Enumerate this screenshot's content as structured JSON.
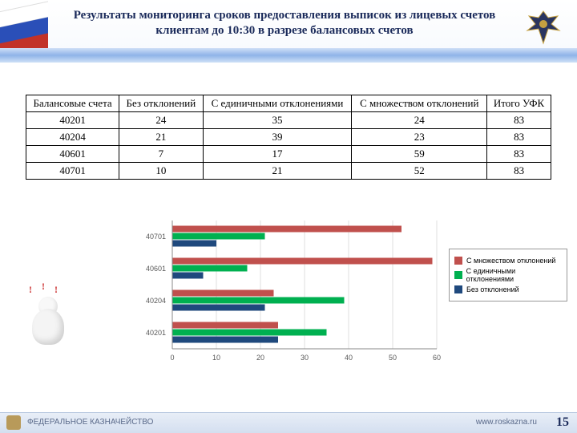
{
  "title": "Результаты мониторинга сроков предоставления выписок из лицевых счетов клиентам до 10:30 в разрезе балансовых счетов",
  "table": {
    "columns": [
      "Балансовые счета",
      "Без отклонений",
      "С единичными отклонениями",
      "С множеством отклонений",
      "Итого УФК"
    ],
    "rows": [
      [
        "40201",
        "24",
        "35",
        "24",
        "83"
      ],
      [
        "40204",
        "21",
        "39",
        "23",
        "83"
      ],
      [
        "40601",
        "7",
        "17",
        "59",
        "83"
      ],
      [
        "40701",
        "10",
        "21",
        "52",
        "83"
      ]
    ]
  },
  "chart": {
    "type": "bar-horizontal-grouped",
    "categories": [
      "40701",
      "40601",
      "40204",
      "40201"
    ],
    "series": [
      {
        "name": "С множеством отклонений",
        "color": "#c0504d",
        "values": [
          52,
          59,
          23,
          24
        ]
      },
      {
        "name": "С единичными\nотклонениями",
        "color": "#00b050",
        "values": [
          21,
          17,
          39,
          35
        ]
      },
      {
        "name": "Без отклонений",
        "color": "#1f497d",
        "values": [
          10,
          7,
          21,
          24
        ]
      }
    ],
    "xlim": [
      0,
      60
    ],
    "xtick_step": 10,
    "grid_color": "#bfbfbf",
    "background_color": "#ffffff",
    "axis_fontsize": 9,
    "axis_color": "#595959",
    "bar_group_height": 34,
    "bar_thickness": 9,
    "legend_fontsize": 9
  },
  "legend_items": [
    {
      "label": "С множеством отклонений",
      "color": "#c0504d"
    },
    {
      "label": "С единичными отклонениями",
      "color": "#00b050"
    },
    {
      "label": "Без отклонений",
      "color": "#1f497d"
    }
  ],
  "footer": {
    "org": "ФЕДЕРАЛЬНОЕ КАЗНАЧЕЙСТВО",
    "site": "www.roskazna.ru"
  },
  "page_number": "15"
}
